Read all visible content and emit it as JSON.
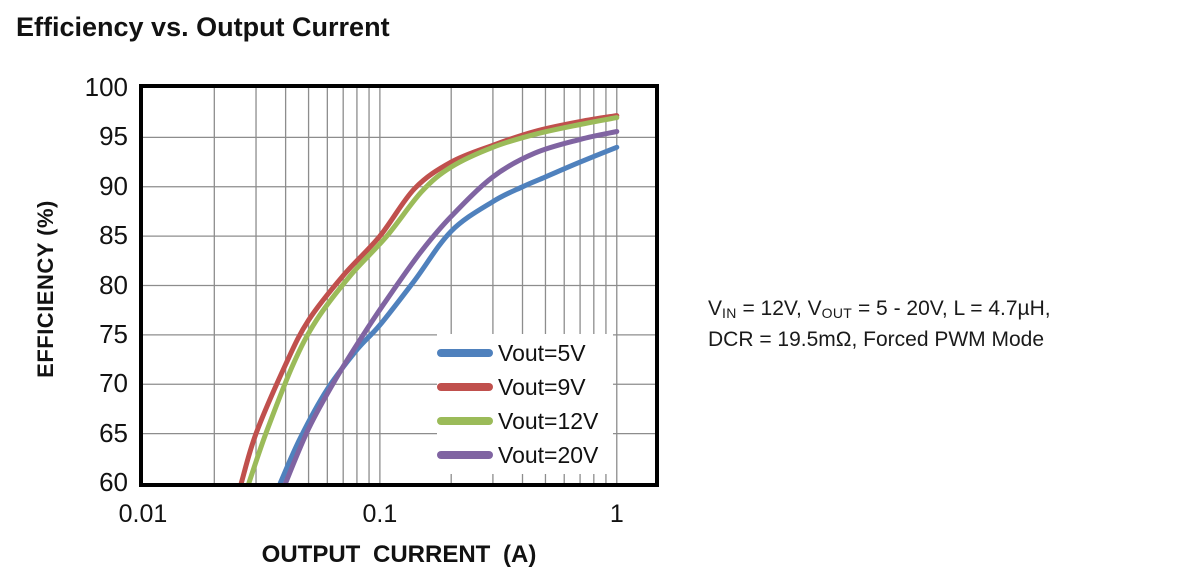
{
  "title": "Efficiency vs. Output Current",
  "annotation": {
    "line1_parts": [
      {
        "t": "V"
      },
      {
        "sub": "IN"
      },
      {
        "t": " = 12V, V"
      },
      {
        "sub": "OUT"
      },
      {
        "t": " = 5 - 20V, L = 4.7µH,"
      }
    ],
    "line1_plain": "VIN = 12V, VOUT = 5 - 20V, L = 4.7µH,",
    "line2": "DCR = 19.5mΩ, Forced PWM Mode"
  },
  "chart_data": {
    "type": "line",
    "title": "Efficiency vs. Output Current",
    "xlabel": "OUTPUT  CURRENT  (A)",
    "ylabel": "EFFICIENCY  (%)",
    "x_scale": "log",
    "xlim": [
      0.01,
      1.45
    ],
    "ylim": [
      60,
      100
    ],
    "grid": true,
    "grid_color": "#8d8d8d",
    "frame_color": "#000000",
    "legend_position": "inside-bottom-right",
    "x_ticks": [
      {
        "value": 0.01,
        "label": "0.01"
      },
      {
        "value": 0.1,
        "label": "0.1"
      },
      {
        "value": 1,
        "label": "1"
      }
    ],
    "y_ticks": [
      100,
      95,
      90,
      85,
      80,
      75,
      70,
      65,
      60
    ],
    "x_gridlines": [
      0.02,
      0.03,
      0.04,
      0.05,
      0.06,
      0.07,
      0.08,
      0.09,
      0.1,
      0.2,
      0.3,
      0.4,
      0.5,
      0.6,
      0.7,
      0.8,
      0.9,
      1.0
    ],
    "y_gridlines": [
      95,
      90,
      85,
      80,
      75,
      70,
      65
    ],
    "series": [
      {
        "name": "Vout=5V",
        "color": "#4F81BD",
        "points": [
          [
            0.038,
            60
          ],
          [
            0.046,
            64.5
          ],
          [
            0.06,
            69.5
          ],
          [
            0.08,
            73.5
          ],
          [
            0.1,
            76
          ],
          [
            0.14,
            80.5
          ],
          [
            0.2,
            85.5
          ],
          [
            0.3,
            88.5
          ],
          [
            0.4,
            90
          ],
          [
            0.5,
            91
          ],
          [
            0.7,
            92.5
          ],
          [
            1.0,
            94
          ]
        ]
      },
      {
        "name": "Vout=9V",
        "color": "#C0504D",
        "points": [
          [
            0.026,
            60
          ],
          [
            0.03,
            65
          ],
          [
            0.04,
            72
          ],
          [
            0.05,
            76.5
          ],
          [
            0.07,
            81
          ],
          [
            0.1,
            85
          ],
          [
            0.14,
            89.8
          ],
          [
            0.2,
            92.5
          ],
          [
            0.3,
            94.2
          ],
          [
            0.45,
            95.6
          ],
          [
            0.7,
            96.6
          ],
          [
            1.0,
            97.2
          ]
        ]
      },
      {
        "name": "Vout=12V",
        "color": "#9BBB59",
        "points": [
          [
            0.028,
            60
          ],
          [
            0.033,
            65
          ],
          [
            0.043,
            72
          ],
          [
            0.054,
            76.5
          ],
          [
            0.075,
            81
          ],
          [
            0.107,
            85
          ],
          [
            0.15,
            89.5
          ],
          [
            0.2,
            92
          ],
          [
            0.3,
            94
          ],
          [
            0.45,
            95.3
          ],
          [
            0.7,
            96.3
          ],
          [
            1.0,
            97
          ]
        ]
      },
      {
        "name": "Vout=20V",
        "color": "#8064A2",
        "points": [
          [
            0.04,
            60
          ],
          [
            0.05,
            65.5
          ],
          [
            0.065,
            70.5
          ],
          [
            0.085,
            75
          ],
          [
            0.11,
            79
          ],
          [
            0.15,
            83.5
          ],
          [
            0.2,
            87
          ],
          [
            0.3,
            91
          ],
          [
            0.45,
            93.4
          ],
          [
            0.7,
            94.8
          ],
          [
            1.0,
            95.6
          ]
        ]
      }
    ]
  }
}
